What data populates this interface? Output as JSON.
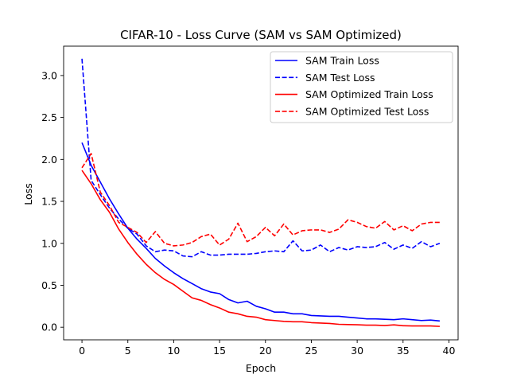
{
  "chart_data": {
    "type": "line",
    "title": "CIFAR-10 - Loss Curve (SAM vs SAM Optimized)",
    "xlabel": "Epoch",
    "ylabel": "Loss",
    "xlim": [
      -2,
      41
    ],
    "ylim": [
      -0.15,
      3.35
    ],
    "xticks": [
      0,
      5,
      10,
      15,
      20,
      25,
      30,
      35,
      40
    ],
    "yticks": [
      0.0,
      0.5,
      1.0,
      1.5,
      2.0,
      2.5,
      3.0
    ],
    "xtick_labels": [
      "0",
      "5",
      "10",
      "15",
      "20",
      "25",
      "30",
      "35",
      "40"
    ],
    "ytick_labels": [
      "0.0",
      "0.5",
      "1.0",
      "1.5",
      "2.0",
      "2.5",
      "3.0"
    ],
    "grid": false,
    "legend_position": "top-right",
    "x": [
      0,
      1,
      2,
      3,
      4,
      5,
      6,
      7,
      8,
      9,
      10,
      11,
      12,
      13,
      14,
      15,
      16,
      17,
      18,
      19,
      20,
      21,
      22,
      23,
      24,
      25,
      26,
      27,
      28,
      29,
      30,
      31,
      32,
      33,
      34,
      35,
      36,
      37,
      38,
      39
    ],
    "series": [
      {
        "name": "SAM Train Loss",
        "color": "#0000ff",
        "dash": "solid",
        "values": [
          2.2,
          1.93,
          1.73,
          1.53,
          1.35,
          1.18,
          1.05,
          0.94,
          0.82,
          0.73,
          0.65,
          0.58,
          0.52,
          0.46,
          0.42,
          0.4,
          0.33,
          0.29,
          0.31,
          0.25,
          0.22,
          0.18,
          0.18,
          0.16,
          0.16,
          0.14,
          0.135,
          0.13,
          0.13,
          0.12,
          0.11,
          0.1,
          0.1,
          0.095,
          0.09,
          0.1,
          0.09,
          0.08,
          0.085,
          0.075
        ]
      },
      {
        "name": "SAM Test Loss",
        "color": "#0000ff",
        "dash": "dashed",
        "values": [
          3.2,
          1.75,
          1.58,
          1.42,
          1.29,
          1.18,
          1.11,
          0.97,
          0.9,
          0.92,
          0.91,
          0.85,
          0.84,
          0.9,
          0.86,
          0.86,
          0.87,
          0.87,
          0.87,
          0.88,
          0.9,
          0.91,
          0.9,
          1.03,
          0.91,
          0.92,
          0.98,
          0.9,
          0.95,
          0.92,
          0.96,
          0.95,
          0.96,
          1.01,
          0.93,
          0.98,
          0.94,
          1.02,
          0.96,
          1.0
        ]
      },
      {
        "name": "SAM Optimized Train Loss",
        "color": "#ff0000",
        "dash": "solid",
        "values": [
          1.87,
          1.71,
          1.52,
          1.37,
          1.17,
          1.01,
          0.87,
          0.75,
          0.65,
          0.57,
          0.51,
          0.43,
          0.35,
          0.32,
          0.27,
          0.23,
          0.18,
          0.16,
          0.13,
          0.12,
          0.09,
          0.08,
          0.07,
          0.065,
          0.065,
          0.055,
          0.05,
          0.045,
          0.035,
          0.032,
          0.03,
          0.025,
          0.025,
          0.02,
          0.028,
          0.018,
          0.015,
          0.015,
          0.015,
          0.01
        ]
      },
      {
        "name": "SAM Optimized Test Loss",
        "color": "#ff0000",
        "dash": "dashed",
        "values": [
          1.9,
          2.07,
          1.61,
          1.45,
          1.25,
          1.19,
          1.13,
          1.01,
          1.14,
          1.0,
          0.97,
          0.98,
          1.01,
          1.08,
          1.11,
          0.98,
          1.05,
          1.24,
          1.02,
          1.08,
          1.19,
          1.09,
          1.23,
          1.1,
          1.15,
          1.16,
          1.16,
          1.13,
          1.17,
          1.28,
          1.25,
          1.2,
          1.18,
          1.26,
          1.16,
          1.21,
          1.15,
          1.23,
          1.25,
          1.25
        ]
      }
    ]
  }
}
